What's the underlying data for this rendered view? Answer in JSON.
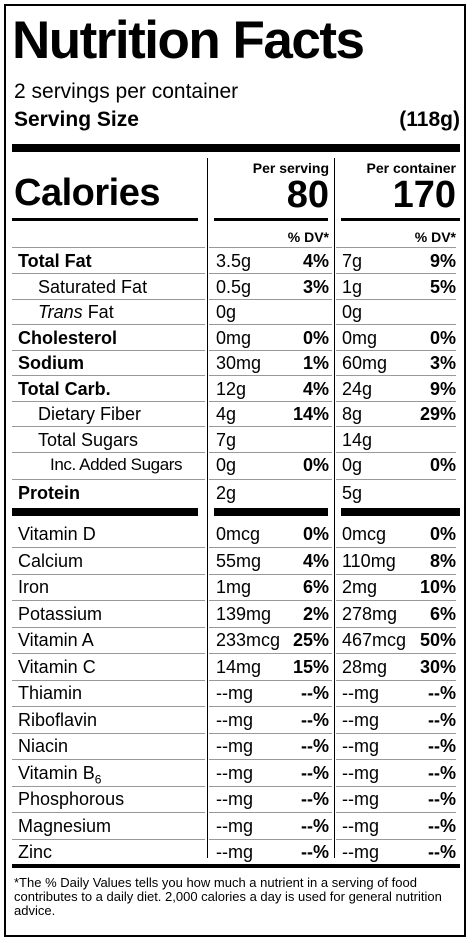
{
  "title": "Nutrition Facts",
  "servings_per_container": "2 servings per container",
  "serving_size_label": "Serving Size",
  "serving_size_value": "(118g)",
  "col_per_serving": "Per serving",
  "col_per_container": "Per container",
  "calories_label": "Calories",
  "calories_serving": "80",
  "calories_container": "170",
  "dv_header": "% DV*",
  "nutrients": [
    {
      "name": "Total Fat",
      "bold": true,
      "indent": 0,
      "amt1": "3.5g",
      "dv1": "4%",
      "amt2": "7g",
      "dv2": "9%"
    },
    {
      "name": "Saturated Fat",
      "bold": false,
      "indent": 1,
      "amt1": "0.5g",
      "dv1": "3%",
      "amt2": "1g",
      "dv2": "5%"
    },
    {
      "name": "Trans Fat",
      "bold": false,
      "indent": 1,
      "italic": "Trans",
      "rest": " Fat",
      "amt1": "0g",
      "dv1": "",
      "amt2": "0g",
      "dv2": ""
    },
    {
      "name": "Cholesterol",
      "bold": true,
      "indent": 0,
      "amt1": "0mg",
      "dv1": "0%",
      "amt2": "0mg",
      "dv2": "0%"
    },
    {
      "name": "Sodium",
      "bold": true,
      "indent": 0,
      "amt1": "30mg",
      "dv1": "1%",
      "amt2": "60mg",
      "dv2": "3%"
    },
    {
      "name": "Total Carb.",
      "bold": true,
      "indent": 0,
      "amt1": "12g",
      "dv1": "4%",
      "amt2": "24g",
      "dv2": "9%"
    },
    {
      "name": "Dietary Fiber",
      "bold": false,
      "indent": 1,
      "amt1": "4g",
      "dv1": "14%",
      "amt2": "8g",
      "dv2": "29%"
    },
    {
      "name": "Total Sugars",
      "bold": false,
      "indent": 1,
      "amt1": "7g",
      "dv1": "",
      "amt2": "14g",
      "dv2": ""
    },
    {
      "name": "Inc. Added Sugars",
      "bold": false,
      "indent": 2,
      "amt1": "0g",
      "dv1": "0%",
      "amt2": "0g",
      "dv2": "0%"
    },
    {
      "name": "Protein",
      "bold": true,
      "indent": 0,
      "amt1": "2g",
      "dv1": "",
      "amt2": "5g",
      "dv2": ""
    }
  ],
  "vitamins": [
    {
      "name": "Vitamin D",
      "amt1": "0mcg",
      "dv1": "0%",
      "amt2": "0mcg",
      "dv2": "0%"
    },
    {
      "name": "Calcium",
      "amt1": "55mg",
      "dv1": "4%",
      "amt2": "110mg",
      "dv2": "8%"
    },
    {
      "name": "Iron",
      "amt1": "1mg",
      "dv1": "6%",
      "amt2": "2mg",
      "dv2": "10%"
    },
    {
      "name": "Potassium",
      "amt1": "139mg",
      "dv1": "2%",
      "amt2": "278mg",
      "dv2": "6%"
    },
    {
      "name": "Vitamin A",
      "amt1": "233mcg",
      "dv1": "25%",
      "amt2": "467mcg",
      "dv2": "50%"
    },
    {
      "name": "Vitamin C",
      "amt1": "14mg",
      "dv1": "15%",
      "amt2": "28mg",
      "dv2": "30%"
    },
    {
      "name": "Thiamin",
      "amt1": "--mg",
      "dv1": "--%",
      "amt2": "--mg",
      "dv2": "--%"
    },
    {
      "name": "Riboflavin",
      "amt1": "--mg",
      "dv1": "--%",
      "amt2": "--mg",
      "dv2": "--%"
    },
    {
      "name": "Niacin",
      "amt1": "--mg",
      "dv1": "--%",
      "amt2": "--mg",
      "dv2": "--%"
    },
    {
      "name": "Vitamin B",
      "sub": "6",
      "amt1": "--mg",
      "dv1": "--%",
      "amt2": "--mg",
      "dv2": "--%"
    },
    {
      "name": "Phosphorous",
      "amt1": "--mg",
      "dv1": "--%",
      "amt2": "--mg",
      "dv2": "--%"
    },
    {
      "name": "Magnesium",
      "amt1": "--mg",
      "dv1": "--%",
      "amt2": "--mg",
      "dv2": "--%"
    },
    {
      "name": "Zinc",
      "amt1": "--mg",
      "dv1": "--%",
      "amt2": "--mg",
      "dv2": "--%"
    }
  ],
  "footnote": "*The % Daily Values tells you how much a nutrient in a serving of food contributes to a daily diet. 2,000 calories a day is used for general nutrition advice."
}
